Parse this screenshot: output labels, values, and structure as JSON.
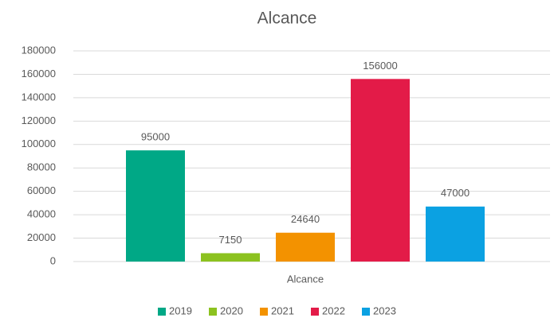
{
  "chart_data": {
    "type": "bar",
    "title": "Alcance",
    "categories": [
      "Alcance"
    ],
    "series": [
      {
        "name": "2019",
        "color": "#00a886",
        "values": [
          95000
        ]
      },
      {
        "name": "2020",
        "color": "#8cc21f",
        "values": [
          7150
        ]
      },
      {
        "name": "2021",
        "color": "#f39200",
        "values": [
          24640
        ]
      },
      {
        "name": "2022",
        "color": "#e31b48",
        "values": [
          156000
        ]
      },
      {
        "name": "2023",
        "color": "#0ba1e2",
        "values": [
          47000
        ]
      }
    ],
    "ylim": [
      0,
      180000
    ],
    "yticks": [
      0,
      20000,
      40000,
      60000,
      80000,
      100000,
      120000,
      140000,
      160000,
      180000
    ],
    "grid": true,
    "legend": "bottom"
  }
}
